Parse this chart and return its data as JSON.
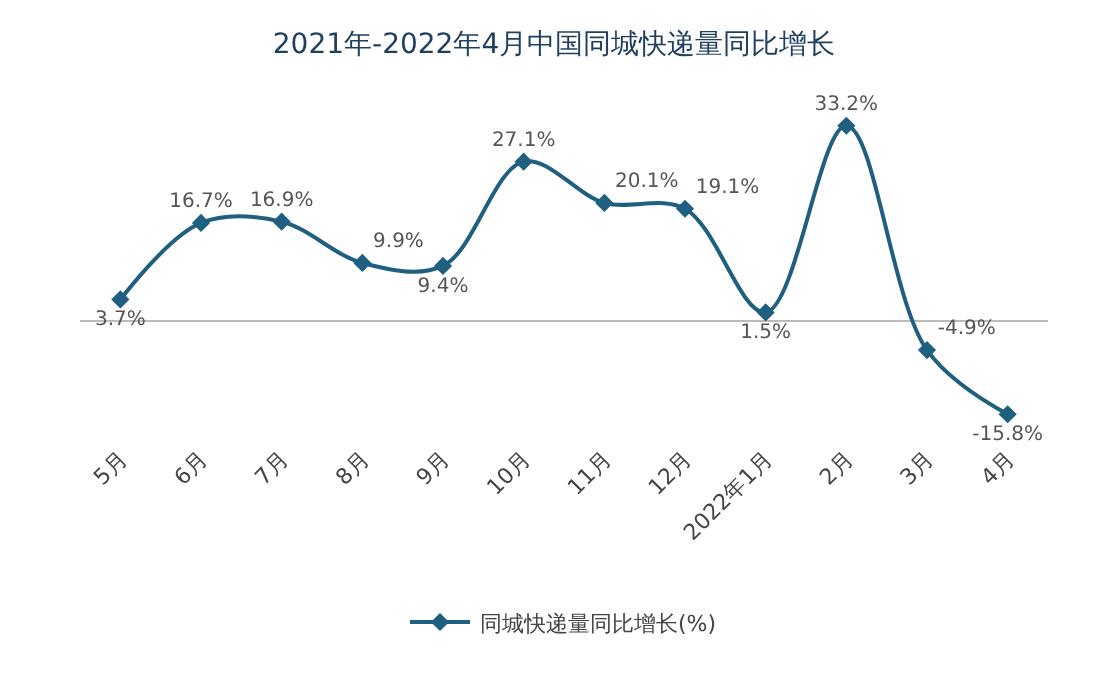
{
  "chart_data": {
    "type": "line",
    "title": "2021年-2022年4月中国同城快递量同比增长",
    "categories": [
      "5月",
      "6月",
      "7月",
      "8月",
      "9月",
      "10月",
      "11月",
      "12月",
      "2022年1月",
      "2月",
      "3月",
      "4月"
    ],
    "series": [
      {
        "name": "同城快递量同比增长(%)",
        "color": "#1f5f7f",
        "values": [
          3.7,
          16.7,
          16.9,
          9.9,
          9.4,
          27.1,
          20.1,
          19.1,
          1.5,
          33.2,
          -4.9,
          -15.8
        ],
        "value_labels": [
          "3.7%",
          "16.7%",
          "16.9%",
          "9.9%",
          "9.4%",
          "27.1%",
          "20.1%",
          "19.1%",
          "1.5%",
          "33.2%",
          "-4.9%",
          "-15.8%"
        ]
      }
    ],
    "marker": "diamond",
    "line_style": "solid",
    "grid": false,
    "legend": "bottom"
  }
}
